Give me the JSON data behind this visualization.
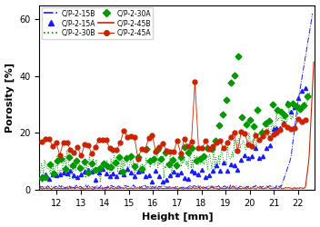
{
  "title": "",
  "xlabel": "Height [mm]",
  "ylabel": "Porosity [%]",
  "xlim": [
    11.3,
    22.7
  ],
  "ylim": [
    0,
    65
  ],
  "yticks": [
    0,
    20,
    40,
    60
  ],
  "xticks": [
    12,
    13,
    14,
    15,
    16,
    17,
    18,
    19,
    20,
    21,
    22
  ],
  "series": {
    "CP15B": {
      "color": "#1a1aff",
      "linestyle": "-.",
      "marker": null,
      "label": "C/P-2-15B"
    },
    "CP15A": {
      "color": "#1a1aff",
      "linestyle": "-",
      "marker": "^",
      "label": "C/P-2-15A"
    },
    "CP30B": {
      "color": "#009900",
      "linestyle": ":",
      "marker": null,
      "label": "C/P-2-30B"
    },
    "CP30A": {
      "color": "#009900",
      "linestyle": "-",
      "marker": "D",
      "label": "C/P-2-30A"
    },
    "CP45B": {
      "color": "#cc2200",
      "linestyle": "-",
      "marker": null,
      "label": "C/P-2-45B"
    },
    "CP45A": {
      "color": "#cc2200",
      "linestyle": "-",
      "marker": "o",
      "label": "C/P-2-45A"
    }
  },
  "figsize": [
    3.52,
    2.5
  ],
  "dpi": 100
}
